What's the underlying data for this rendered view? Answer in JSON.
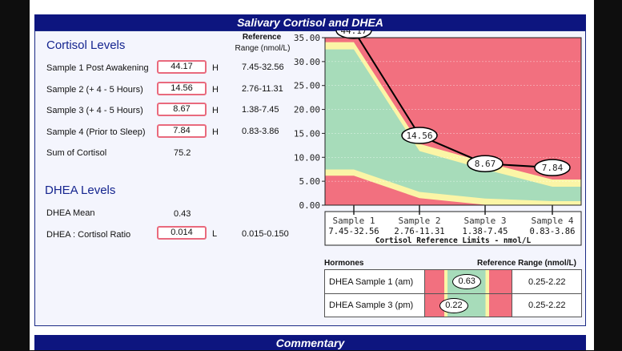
{
  "header": {
    "title": "Salivary Cortisol and DHEA"
  },
  "footer": {
    "title": "Commentary"
  },
  "cortisol": {
    "title": "Cortisol Levels",
    "range_header_1": "Reference",
    "range_header_2": "Range (nmol/L)",
    "samples": [
      {
        "label": "Sample 1 Post Awakening",
        "value": "44.17",
        "flag": "H",
        "range": "7.45-32.56"
      },
      {
        "label": "Sample 2 (+ 4 - 5 Hours)",
        "value": "14.56",
        "flag": "H",
        "range": "2.76-11.31"
      },
      {
        "label": "Sample 3 (+ 4 - 5 Hours)",
        "value": "8.67",
        "flag": "H",
        "range": "1.38-7.45"
      },
      {
        "label": "Sample 4 (Prior to Sleep)",
        "value": "7.84",
        "flag": "H",
        "range": "0.83-3.86"
      }
    ],
    "sum_label": "Sum of Cortisol",
    "sum_value": "75.2"
  },
  "dhea": {
    "title": "DHEA Levels",
    "mean_label": "DHEA Mean",
    "mean_value": "0.43",
    "ratio_label": "DHEA : Cortisol Ratio",
    "ratio_value": "0.014",
    "ratio_flag": "L",
    "ratio_range": "0.015-0.150"
  },
  "hormones": {
    "col_hormones": "Hormones",
    "col_range": "Reference Range (nmol/L)",
    "rows": [
      {
        "label": "DHEA Sample 1 (am)",
        "value": "0.63",
        "value_num": 0.63,
        "range": "0.25-2.22"
      },
      {
        "label": "DHEA Sample 3 (pm)",
        "value": "0.22",
        "value_num": 0.22,
        "range": "0.25-2.22"
      }
    ]
  },
  "colors": {
    "header_bg": "#0d157f",
    "high_zone": "#f2707f",
    "normal_zone": "#a7dcba",
    "border_zone": "#fbf5a6",
    "value_box_border": "#e96a7d",
    "title_text": "#15258f"
  },
  "chart_data": {
    "type": "area",
    "title": "Cortisol Reference Limits - nmol/L",
    "xlabel": "Cortisol Reference Limits - nmol/L",
    "ylabel": "",
    "categories": [
      "Sample 1",
      "Sample 2",
      "Sample 3",
      "Sample 4"
    ],
    "range_labels": [
      "7.45-32.56",
      "2.76-11.31",
      "1.38-7.45",
      "0.83-3.86"
    ],
    "ylim": [
      0,
      35
    ],
    "yticks": [
      "0.00",
      "5.00",
      "10.00",
      "15.00",
      "20.00",
      "25.00",
      "30.00",
      "35.00"
    ],
    "reference_low": [
      7.45,
      2.76,
      1.38,
      0.83
    ],
    "reference_high": [
      32.56,
      11.31,
      7.45,
      3.86
    ],
    "series": [
      {
        "name": "Cortisol",
        "values": [
          44.17,
          14.56,
          8.67,
          7.84
        ],
        "labels": [
          "44.17",
          "14.56",
          "8.67",
          "7.84"
        ]
      }
    ],
    "grid": true
  }
}
